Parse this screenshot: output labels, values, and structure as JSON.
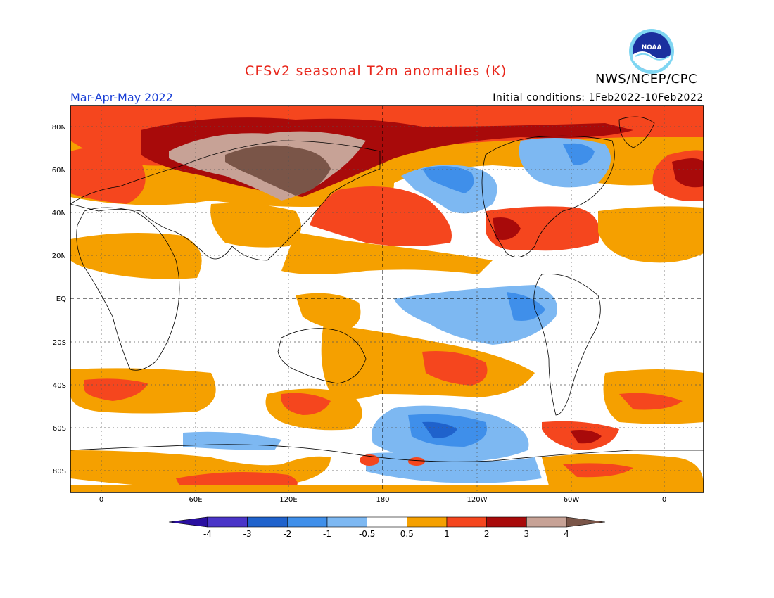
{
  "header": {
    "title": "CFSv2 seasonal T2m anomalies (K)",
    "agency": "NWS/NCEP/CPC",
    "season": "Mar-Apr-May 2022",
    "initial_conditions": "Initial conditions: 1Feb2022-10Feb2022",
    "logo_text": "NOAA"
  },
  "map": {
    "latitude_labels": [
      "80N",
      "60N",
      "40N",
      "20N",
      "EQ",
      "20S",
      "40S",
      "60S",
      "80S"
    ],
    "longitude_labels": [
      "0",
      "60E",
      "120E",
      "180",
      "120W",
      "60W",
      "0"
    ],
    "background_color": "#ffffff"
  },
  "colorbar": {
    "labels": [
      "-4",
      "-3",
      "-2",
      "-1",
      "-0.5",
      "0.5",
      "1",
      "2",
      "3",
      "4"
    ],
    "colors": [
      "#2a0fa0",
      "#4a35c8",
      "#1f62cc",
      "#3f8fea",
      "#7db8f2",
      "#ffffff",
      "#f5a000",
      "#f5461e",
      "#a80a0a",
      "#c7a296",
      "#7a5548"
    ]
  }
}
